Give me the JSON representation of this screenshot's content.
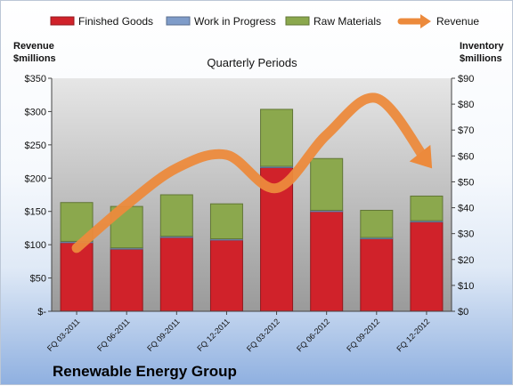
{
  "chart_data": {
    "type": "bar",
    "categories": [
      "FQ 03-2011",
      "FQ 06-2011",
      "FQ 09-2011",
      "FQ 12-2011",
      "FQ 03-2012",
      "FQ 06-2012",
      "FQ 09-2012",
      "FQ 12-2012"
    ],
    "series": [
      {
        "name": "Finished Goods",
        "axis": "right",
        "color": "#d0222a",
        "values": [
          26.5,
          24.0,
          28.5,
          27.5,
          55.5,
          38.5,
          28.0,
          34.5
        ]
      },
      {
        "name": "Work in Progress",
        "axis": "right",
        "color": "#7f9cc9",
        "values": [
          0.5,
          0.5,
          0.5,
          0.5,
          0.5,
          0.5,
          0.5,
          0.5
        ]
      },
      {
        "name": "Raw Materials",
        "axis": "right",
        "color": "#8ba84d",
        "values": [
          15.0,
          16.0,
          16.0,
          13.5,
          22.0,
          20.0,
          10.5,
          9.5
        ]
      },
      {
        "name": "Revenue",
        "type": "line",
        "axis": "left",
        "color": "#ec8a3c",
        "values": [
          95,
          160,
          215,
          235,
          185,
          265,
          320,
          225
        ]
      }
    ],
    "title": "Quarterly Periods",
    "ylabel": "Revenue\n$millions",
    "y2label": "Inventory\n$millions",
    "ylim": [
      0,
      350
    ],
    "y2lim": [
      0,
      90
    ],
    "yticks": [
      "$-",
      "$50",
      "$100",
      "$150",
      "$200",
      "$250",
      "$300",
      "$350"
    ],
    "y2ticks": [
      "$0",
      "$10",
      "$20",
      "$30",
      "$40",
      "$50",
      "$60",
      "$70",
      "$80",
      "$90"
    ],
    "legend_position": "top",
    "grid": false
  },
  "footer": {
    "company": "Renewable Energy Group"
  }
}
